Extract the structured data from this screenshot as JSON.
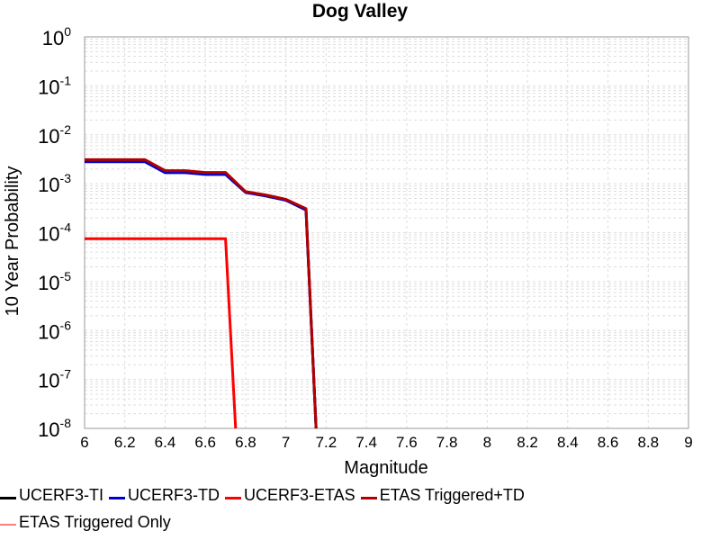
{
  "chart_data": {
    "type": "line",
    "title": "Dog Valley",
    "xlabel": "Magnitude",
    "ylabel": "10 Year Probability",
    "xscale": "linear",
    "yscale": "log",
    "xlim": [
      6,
      9
    ],
    "ylim": [
      1e-08,
      1
    ],
    "grid": true,
    "xticks": [
      6,
      6.2,
      6.4,
      6.6,
      6.8,
      7,
      7.2,
      7.4,
      7.6,
      7.8,
      8,
      8.2,
      8.4,
      8.6,
      8.8,
      9
    ],
    "xtick_labels": [
      "6",
      "6.2",
      "6.4",
      "6.6",
      "6.8",
      "7",
      "7.2",
      "7.4",
      "7.6",
      "7.8",
      "8",
      "8.2",
      "8.4",
      "8.6",
      "8.8",
      "9"
    ],
    "yticks": [
      {
        "value": 1,
        "base": "10",
        "exp": "0"
      },
      {
        "value": 0.1,
        "base": "10",
        "exp": "-1"
      },
      {
        "value": 0.01,
        "base": "10",
        "exp": "-2"
      },
      {
        "value": 0.001,
        "base": "10",
        "exp": "-3"
      },
      {
        "value": 0.0001,
        "base": "10",
        "exp": "-4"
      },
      {
        "value": 1e-05,
        "base": "10",
        "exp": "-5"
      },
      {
        "value": 1e-06,
        "base": "10",
        "exp": "-6"
      },
      {
        "value": 1e-07,
        "base": "10",
        "exp": "-7"
      },
      {
        "value": 1e-08,
        "base": "10",
        "exp": "-8"
      }
    ],
    "series": [
      {
        "name": "UCERF3-TI",
        "color": "#000000",
        "width": 3,
        "x": [
          6.0,
          6.1,
          6.2,
          6.3,
          6.4,
          6.5,
          6.6,
          6.7,
          6.8,
          6.9,
          7.0,
          7.1,
          7.15
        ],
        "y": [
          0.0029,
          0.0029,
          0.0029,
          0.0029,
          0.00175,
          0.00175,
          0.0016,
          0.0016,
          0.00068,
          0.00058,
          0.00047,
          0.0003,
          1e-09
        ]
      },
      {
        "name": "UCERF3-TD",
        "color": "#0000cc",
        "width": 3,
        "x": [
          6.0,
          6.1,
          6.2,
          6.3,
          6.4,
          6.5,
          6.6,
          6.7,
          6.8,
          6.9,
          7.0,
          7.1,
          7.15
        ],
        "y": [
          0.0028,
          0.0028,
          0.0028,
          0.0028,
          0.00168,
          0.00168,
          0.00154,
          0.00154,
          0.00066,
          0.00056,
          0.00046,
          0.00029,
          1e-09
        ]
      },
      {
        "name": "UCERF3-ETAS",
        "color": "#ff0000",
        "width": 3,
        "x": [
          6.0,
          6.1,
          6.2,
          6.3,
          6.4,
          6.5,
          6.6,
          6.7,
          6.75
        ],
        "y": [
          7.5e-05,
          7.5e-05,
          7.5e-05,
          7.5e-05,
          7.5e-05,
          7.5e-05,
          7.5e-05,
          7.5e-05,
          1e-09
        ]
      },
      {
        "name": "ETAS Triggered+TD",
        "color": "#b20000",
        "width": 3,
        "x": [
          6.0,
          6.1,
          6.2,
          6.3,
          6.4,
          6.5,
          6.6,
          6.7,
          6.8,
          6.9,
          7.0,
          7.1,
          7.15
        ],
        "y": [
          0.0031,
          0.0031,
          0.0031,
          0.0031,
          0.00185,
          0.00185,
          0.0017,
          0.0017,
          0.00069,
          0.00059,
          0.00048,
          0.00031,
          1e-09
        ]
      },
      {
        "name": "ETAS Triggered Only",
        "color": "#ff7f7f",
        "width": 2,
        "x": [],
        "y": []
      }
    ]
  }
}
